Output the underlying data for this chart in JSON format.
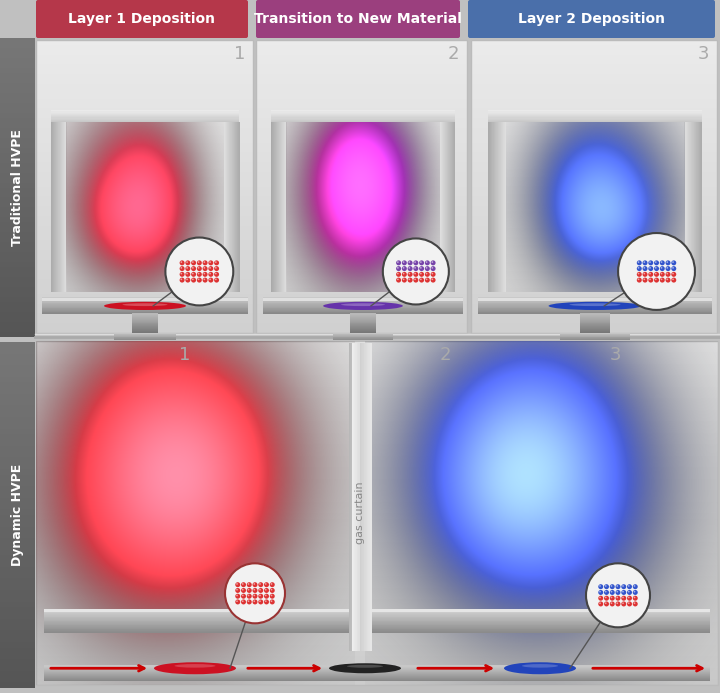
{
  "title_labels": [
    "Layer 1 Deposition",
    "Transition to New Material",
    "Layer 2 Deposition"
  ],
  "title_colors": [
    "#b5374a",
    "#9b3f7e",
    "#4a6faa"
  ],
  "title_text_color": "#ffffff",
  "side_label_top": "Traditional HVPE",
  "side_label_bottom": "Dynamic HVPE",
  "side_label_color": "#ffffff",
  "side_bg_color": "#666666",
  "gas_curtain_label": "gas curtain",
  "stage_numbers": [
    "1",
    "2",
    "3"
  ],
  "number_color": "#aaaaaa",
  "arrow_color": "#cc0000",
  "panel_bg": "#e8e8e8",
  "reactor_wall_light": "#d8d8d8",
  "reactor_wall_dark": "#909090",
  "platen_light": "#cccccc",
  "platen_dark": "#777777",
  "fig_bg": "#c0c0c0",
  "separator_color": "#aaaaaa",
  "zoom_circle_edge": "#444444",
  "atom_red": "#dd3333",
  "atom_blue": "#3355cc",
  "atom_purple": "#7744aa",
  "wafer_red": "#cc1122",
  "wafer_purple": "#6633aa",
  "wafer_blue": "#2244bb"
}
